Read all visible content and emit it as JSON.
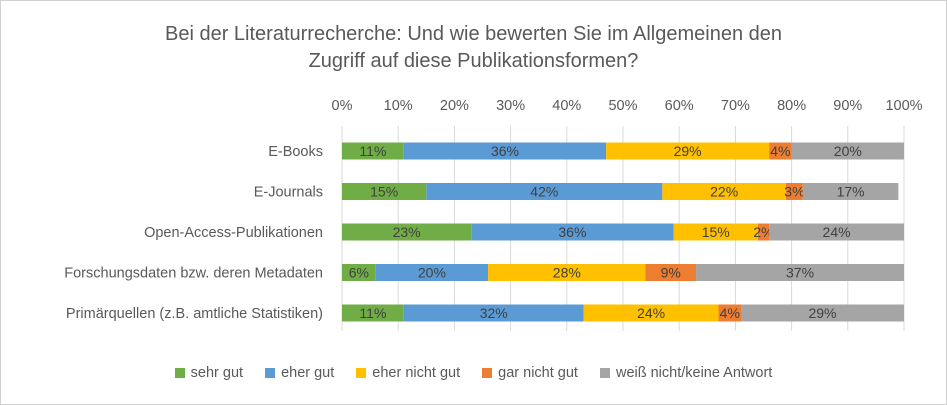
{
  "chart_data": {
    "type": "bar",
    "orientation": "horizontal",
    "stacked": true,
    "title_lines": [
      "Bei der Literaturrecherche: Und wie bewerten Sie im Allgemeinen den",
      "Zugriff auf diese Publikationsformen?"
    ],
    "x_ticks": [
      "0%",
      "10%",
      "20%",
      "30%",
      "40%",
      "50%",
      "60%",
      "70%",
      "80%",
      "90%",
      "100%"
    ],
    "xlim": [
      0,
      100
    ],
    "x_axis_position": "top",
    "grid": true,
    "legend_position": "bottom",
    "categories": [
      "E-Books",
      "E-Journals",
      "Open-Access-Publikationen",
      "Forschungsdaten bzw. deren Metadaten",
      "Primärquellen (z.B. amtliche Statistiken)"
    ],
    "series": [
      {
        "name": "sehr gut",
        "color": "#70AD47",
        "values": [
          11,
          15,
          23,
          6,
          11
        ],
        "labels": [
          "11%",
          "15%",
          "23%",
          "6%",
          "11%"
        ]
      },
      {
        "name": "eher gut",
        "color": "#5B9BD5",
        "values": [
          36,
          42,
          36,
          20,
          32
        ],
        "labels": [
          "36%",
          "42%",
          "36%",
          "20%",
          "32%"
        ]
      },
      {
        "name": "eher nicht gut",
        "color": "#FFC000",
        "values": [
          29,
          22,
          15,
          28,
          24
        ],
        "labels": [
          "29%",
          "22%",
          "15%",
          "28%",
          "24%"
        ]
      },
      {
        "name": "gar nicht gut",
        "color": "#ED7D31",
        "values": [
          4,
          3,
          2,
          9,
          4
        ],
        "labels": [
          "4%",
          "3%",
          "2%",
          "9%",
          "4%"
        ]
      },
      {
        "name": "weiß nicht/keine Antwort",
        "color": "#A5A5A5",
        "values": [
          20,
          17,
          24,
          37,
          29
        ],
        "labels": [
          "20%",
          "17%",
          "24%",
          "37%",
          "29%"
        ]
      }
    ]
  }
}
